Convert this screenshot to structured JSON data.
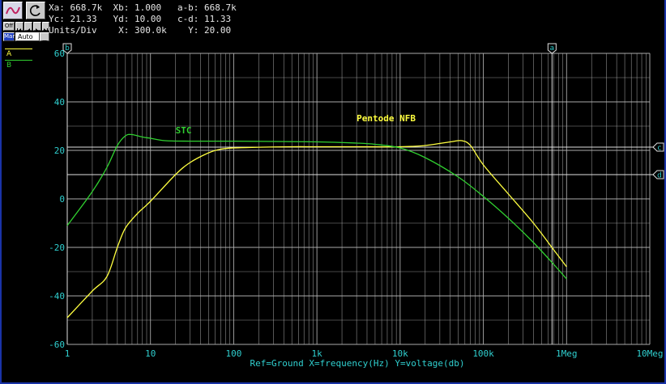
{
  "cursor_readout": {
    "row1": "Xa: 668.7k  Xb: 1.000   a-b: 668.7k",
    "row2": "Yc: 21.33   Yd: 10.00   c-d: 11.33",
    "row3": "Units/Div    X: 300.0k    Y: 20.00"
  },
  "toolbar": {
    "scale_label": "Auto",
    "mode_label": "Mar",
    "off_label": "Off"
  },
  "legend": [
    {
      "name": "A",
      "color": "#ffff40"
    },
    {
      "name": "B",
      "color": "#30d030"
    }
  ],
  "colors": {
    "grid": "#b4b4b4",
    "axis_text": "#30d0d0",
    "series_A": "#ffff40",
    "series_B": "#30d030",
    "frame": "#1a33a8"
  },
  "chart_data": {
    "type": "line",
    "x_scale": "log",
    "xlim": [
      1,
      10000000
    ],
    "ylim": [
      -60,
      60
    ],
    "x_ticks": [
      {
        "value": 1,
        "label": "1"
      },
      {
        "value": 10,
        "label": "10"
      },
      {
        "value": 100,
        "label": "100"
      },
      {
        "value": 1000,
        "label": "1k"
      },
      {
        "value": 10000,
        "label": "10k"
      },
      {
        "value": 100000,
        "label": "100k"
      },
      {
        "value": 1000000,
        "label": "1Meg"
      },
      {
        "value": 10000000,
        "label": "10Meg"
      }
    ],
    "y_ticks": [
      {
        "value": 60,
        "label": "60"
      },
      {
        "value": 40,
        "label": "40"
      },
      {
        "value": 20,
        "label": "20"
      },
      {
        "value": 0,
        "label": "0"
      },
      {
        "value": -20,
        "label": "-20"
      },
      {
        "value": -40,
        "label": "-40"
      },
      {
        "value": -60,
        "label": "-60"
      }
    ],
    "xlabel": "Ref=Ground  X=frequency(Hz) Y=voltage(db)",
    "grid": true,
    "annotations": [
      {
        "text": "STC",
        "x": 20,
        "y": 27,
        "color": "#30d030"
      },
      {
        "text": "Pentode NFB",
        "x": 3000,
        "y": 32,
        "color": "#ffff40"
      }
    ],
    "cursors": [
      {
        "label": "b",
        "axis": "x",
        "value": 1
      },
      {
        "label": "a",
        "axis": "x",
        "value": 668700
      },
      {
        "label": "c",
        "axis": "y",
        "value": 21.33
      },
      {
        "label": "d",
        "axis": "y",
        "value": 10
      }
    ],
    "series": [
      {
        "name": "A",
        "color": "#ffff40",
        "points": [
          [
            1,
            -49
          ],
          [
            2,
            -38
          ],
          [
            3,
            -32
          ],
          [
            4,
            -20
          ],
          [
            5,
            -12
          ],
          [
            7,
            -6
          ],
          [
            10,
            -1
          ],
          [
            20,
            10
          ],
          [
            30,
            15
          ],
          [
            50,
            19
          ],
          [
            70,
            20.5
          ],
          [
            100,
            21
          ],
          [
            200,
            21.3
          ],
          [
            500,
            21.5
          ],
          [
            1000,
            21.5
          ],
          [
            3000,
            21.5
          ],
          [
            10000,
            21.5
          ],
          [
            20000,
            22
          ],
          [
            40000,
            23.5
          ],
          [
            55000,
            24
          ],
          [
            70000,
            22
          ],
          [
            100000,
            14
          ],
          [
            200000,
            2
          ],
          [
            400000,
            -10
          ],
          [
            700000,
            -21
          ],
          [
            1000000,
            -28
          ]
        ]
      },
      {
        "name": "B",
        "color": "#30d030",
        "points": [
          [
            1,
            -11
          ],
          [
            2,
            3
          ],
          [
            3,
            13
          ],
          [
            4,
            22
          ],
          [
            5,
            26
          ],
          [
            6,
            26.5
          ],
          [
            8,
            25.5
          ],
          [
            10,
            25
          ],
          [
            15,
            24
          ],
          [
            30,
            23.8
          ],
          [
            100,
            23.8
          ],
          [
            1000,
            23.5
          ],
          [
            3000,
            23
          ],
          [
            5000,
            22.5
          ],
          [
            10000,
            21
          ],
          [
            20000,
            17
          ],
          [
            50000,
            9
          ],
          [
            100000,
            1
          ],
          [
            200000,
            -8
          ],
          [
            400000,
            -18
          ],
          [
            700000,
            -27
          ],
          [
            1000000,
            -33
          ]
        ]
      }
    ]
  }
}
